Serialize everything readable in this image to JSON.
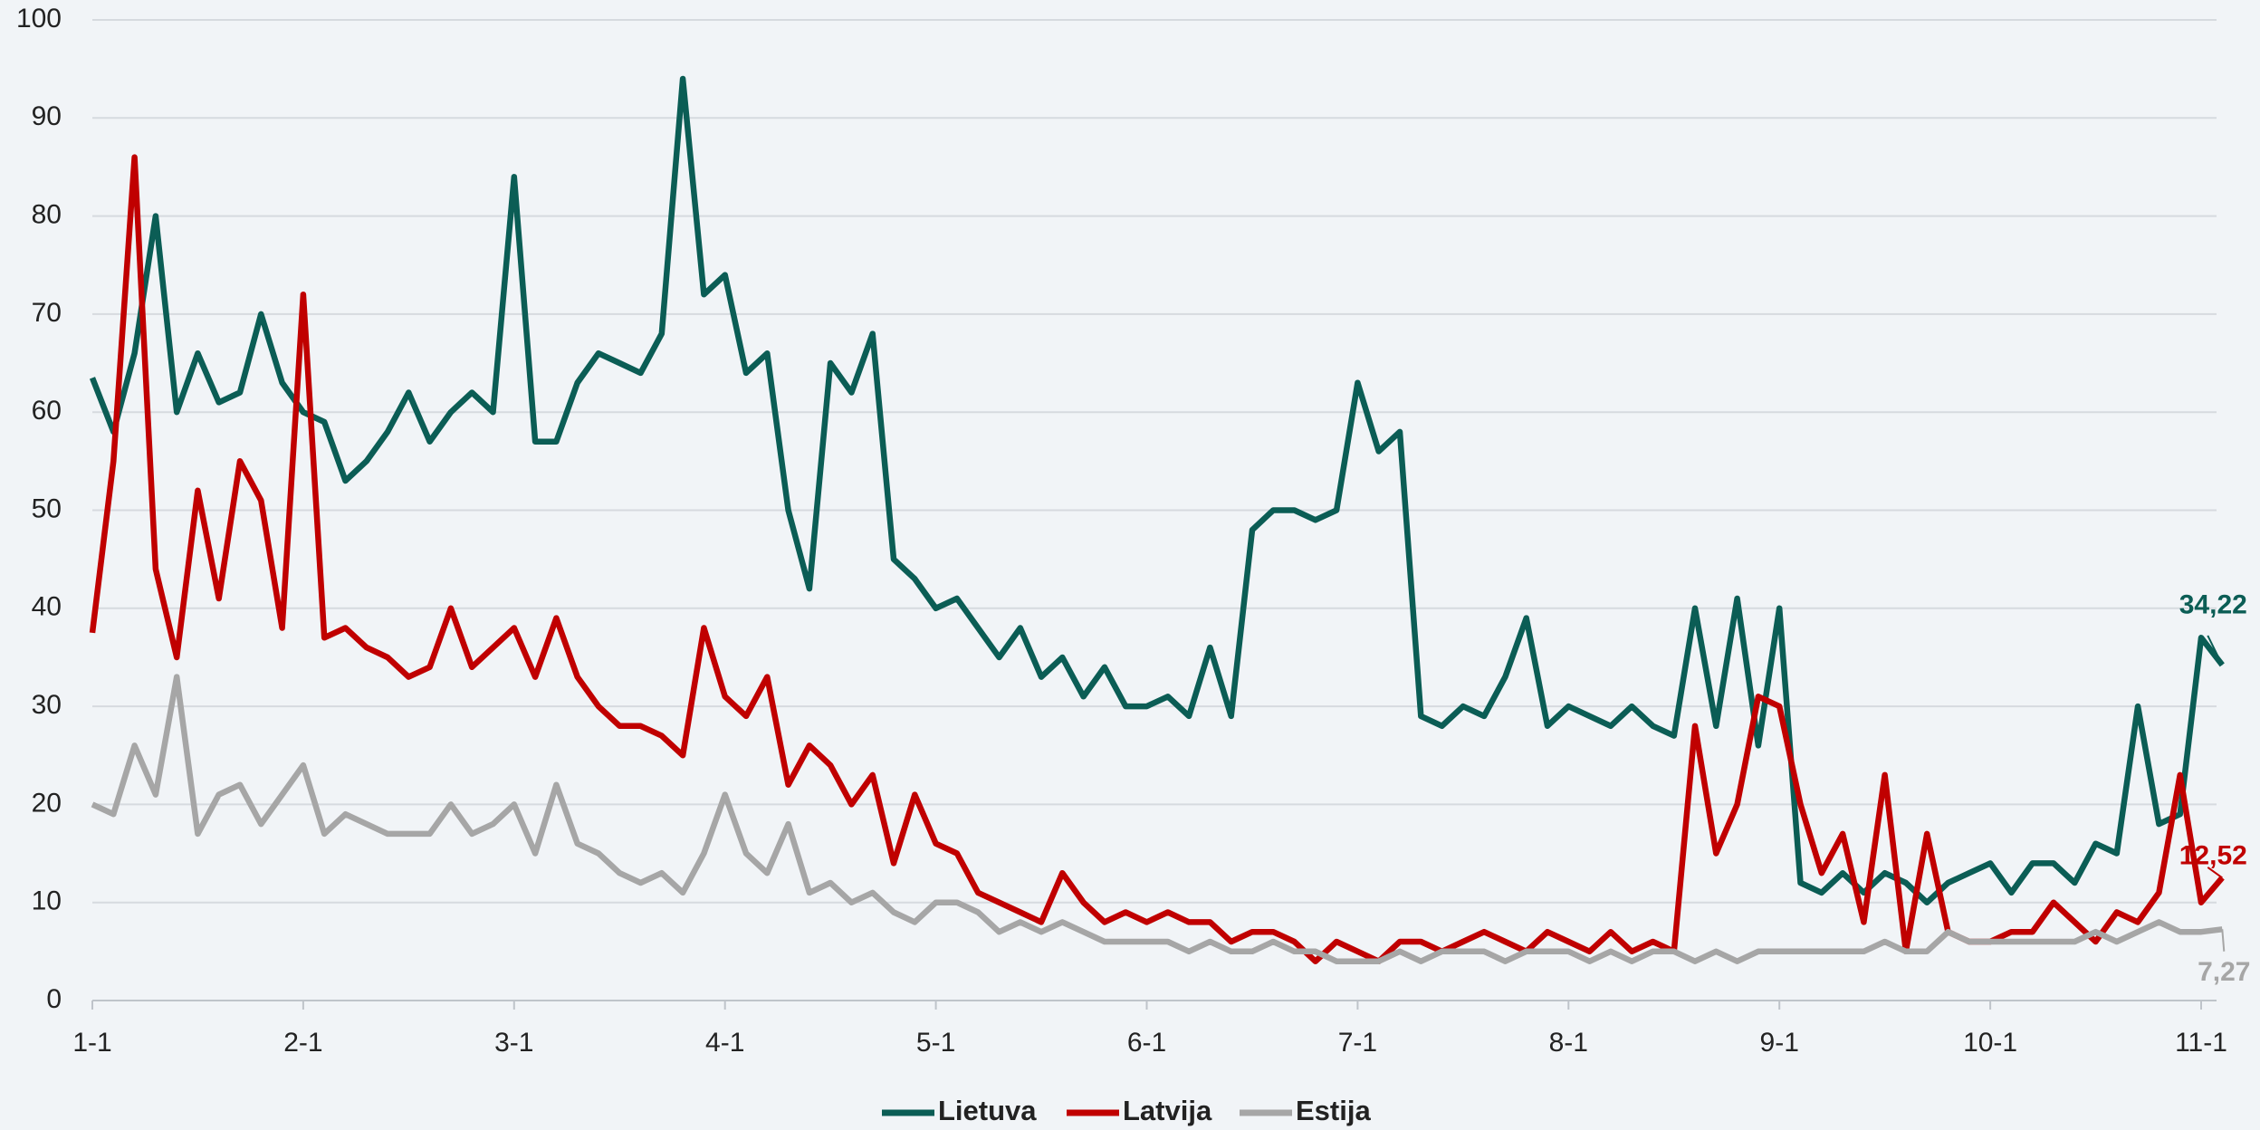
{
  "chart_data": {
    "type": "line",
    "categories": [
      "1-1",
      null,
      null,
      null,
      null,
      null,
      null,
      null,
      null,
      null,
      "2-1",
      null,
      null,
      null,
      null,
      null,
      null,
      null,
      null,
      null,
      "3-1",
      null,
      null,
      null,
      null,
      null,
      null,
      null,
      null,
      null,
      "4-1",
      null,
      null,
      null,
      null,
      null,
      null,
      null,
      null,
      null,
      "5-1",
      null,
      null,
      null,
      null,
      null,
      null,
      null,
      null,
      null,
      "6-1",
      null,
      null,
      null,
      null,
      null,
      null,
      null,
      null,
      null,
      "7-1",
      null,
      null,
      null,
      null,
      null,
      null,
      null,
      null,
      null,
      "8-1",
      null,
      null,
      null,
      null,
      null,
      null,
      null,
      null,
      null,
      "9-1",
      null,
      null,
      null,
      null,
      null,
      null,
      null,
      null,
      null,
      "10-1",
      null,
      null,
      null,
      null,
      null,
      null,
      null,
      null,
      null,
      "11-1",
      null
    ],
    "series": [
      {
        "name": "Lietuva",
        "color": "#0b5d55",
        "values": [
          63.5,
          58,
          66,
          80,
          60,
          66,
          61,
          62,
          70,
          63,
          60,
          59,
          53,
          55,
          58,
          62,
          57,
          60,
          62,
          60,
          84,
          57,
          57,
          63,
          66,
          65,
          64,
          68,
          94,
          72,
          74,
          64,
          66,
          50,
          42,
          65,
          62,
          68,
          45,
          43,
          40,
          41,
          38,
          35,
          38,
          33,
          35,
          31,
          34,
          30,
          30,
          31,
          29,
          36,
          29,
          48,
          50,
          50,
          49,
          50,
          63,
          56,
          58,
          29,
          28,
          30,
          29,
          33,
          39,
          28,
          30,
          29,
          28,
          30,
          28,
          27,
          40,
          28,
          41,
          26,
          40,
          12,
          11,
          13,
          11,
          13,
          12,
          10,
          12,
          13,
          14,
          11,
          14,
          14,
          12,
          16,
          15,
          30,
          18,
          19,
          37,
          34.22
        ],
        "value_labels": [
          null,
          null,
          null,
          null,
          null,
          null,
          null,
          null,
          null,
          null,
          null,
          null,
          null,
          null,
          null,
          null,
          null,
          null,
          null,
          null,
          null,
          null,
          null,
          null,
          null,
          null,
          null,
          null,
          null,
          null,
          null,
          null,
          null,
          null,
          null,
          null,
          null,
          null,
          null,
          null,
          null,
          null,
          null,
          null,
          null,
          null,
          null,
          null,
          null,
          null,
          null,
          null,
          null,
          null,
          null,
          null,
          null,
          null,
          null,
          null,
          null,
          null,
          null,
          null,
          null,
          null,
          null,
          null,
          null,
          null,
          null,
          null,
          null,
          null,
          null,
          null,
          null,
          null,
          null,
          null,
          null,
          null,
          null,
          null,
          null,
          null,
          null,
          null,
          null,
          null,
          null,
          null,
          null,
          null,
          null,
          null,
          null,
          null,
          null,
          null,
          null,
          "34,22"
        ]
      },
      {
        "name": "Latvija",
        "color": "#c00000",
        "values": [
          37.5,
          55,
          86,
          44,
          35,
          52,
          41,
          55,
          51,
          38,
          72,
          37,
          38,
          36,
          35,
          33,
          34,
          40,
          34,
          36,
          38,
          33,
          39,
          33,
          30,
          28,
          28,
          27,
          25,
          38,
          31,
          29,
          33,
          22,
          26,
          24,
          20,
          23,
          14,
          21,
          16,
          15,
          11,
          10,
          9,
          8,
          13,
          10,
          8,
          9,
          8,
          9,
          8,
          8,
          6,
          7,
          7,
          6,
          4,
          6,
          5,
          4,
          6,
          6,
          5,
          6,
          7,
          6,
          5,
          7,
          6,
          5,
          7,
          5,
          6,
          5,
          28,
          15,
          20,
          31,
          30,
          20,
          13,
          17,
          8,
          23,
          5,
          17,
          7,
          6,
          6,
          7,
          7,
          10,
          8,
          6,
          9,
          8,
          11,
          23,
          10,
          12.52
        ],
        "value_labels": [
          null,
          null,
          null,
          null,
          null,
          null,
          null,
          null,
          null,
          null,
          null,
          null,
          null,
          null,
          null,
          null,
          null,
          null,
          null,
          null,
          null,
          null,
          null,
          null,
          null,
          null,
          null,
          null,
          null,
          null,
          null,
          null,
          null,
          null,
          null,
          null,
          null,
          null,
          null,
          null,
          null,
          null,
          null,
          null,
          null,
          null,
          null,
          null,
          null,
          null,
          null,
          null,
          null,
          null,
          null,
          null,
          null,
          null,
          null,
          null,
          null,
          null,
          null,
          null,
          null,
          null,
          null,
          null,
          null,
          null,
          null,
          null,
          null,
          null,
          null,
          null,
          null,
          null,
          null,
          null,
          null,
          null,
          null,
          null,
          null,
          null,
          null,
          null,
          null,
          null,
          null,
          null,
          null,
          null,
          null,
          null,
          null,
          null,
          null,
          null,
          null,
          "12,52"
        ]
      },
      {
        "name": "Estija",
        "color": "#a6a6a6",
        "values": [
          20,
          19,
          26,
          21,
          33,
          17,
          21,
          22,
          18,
          21,
          24,
          17,
          19,
          18,
          17,
          17,
          17,
          20,
          17,
          18,
          20,
          15,
          22,
          16,
          15,
          13,
          12,
          13,
          11,
          15,
          21,
          15,
          13,
          18,
          11,
          12,
          10,
          11,
          9,
          8,
          10,
          10,
          9,
          7,
          8,
          7,
          8,
          7,
          6,
          6,
          6,
          6,
          5,
          6,
          5,
          5,
          6,
          5,
          5,
          4,
          4,
          4,
          5,
          4,
          5,
          5,
          5,
          4,
          5,
          5,
          5,
          4,
          5,
          4,
          5,
          5,
          4,
          5,
          4,
          5,
          5,
          5,
          5,
          5,
          5,
          6,
          5,
          5,
          7,
          6,
          6,
          6,
          6,
          6,
          6,
          7,
          6,
          7,
          8,
          7,
          7,
          7.27
        ],
        "value_labels": [
          null,
          null,
          null,
          null,
          null,
          null,
          null,
          null,
          null,
          null,
          null,
          null,
          null,
          null,
          null,
          null,
          null,
          null,
          null,
          null,
          null,
          null,
          null,
          null,
          null,
          null,
          null,
          null,
          null,
          null,
          null,
          null,
          null,
          null,
          null,
          null,
          null,
          null,
          null,
          null,
          null,
          null,
          null,
          null,
          null,
          null,
          null,
          null,
          null,
          null,
          null,
          null,
          null,
          null,
          null,
          null,
          null,
          null,
          null,
          null,
          null,
          null,
          null,
          null,
          null,
          null,
          null,
          null,
          null,
          null,
          null,
          null,
          null,
          null,
          null,
          null,
          null,
          null,
          null,
          null,
          null,
          null,
          null,
          null,
          null,
          null,
          null,
          null,
          null,
          null,
          null,
          null,
          null,
          null,
          null,
          null,
          null,
          null,
          null,
          null,
          null,
          "7,27"
        ]
      }
    ],
    "ylim": [
      0,
      100
    ],
    "yticks": [
      0,
      10,
      20,
      30,
      40,
      50,
      60,
      70,
      80,
      90,
      100
    ],
    "grid": true,
    "legend": "bottom"
  }
}
